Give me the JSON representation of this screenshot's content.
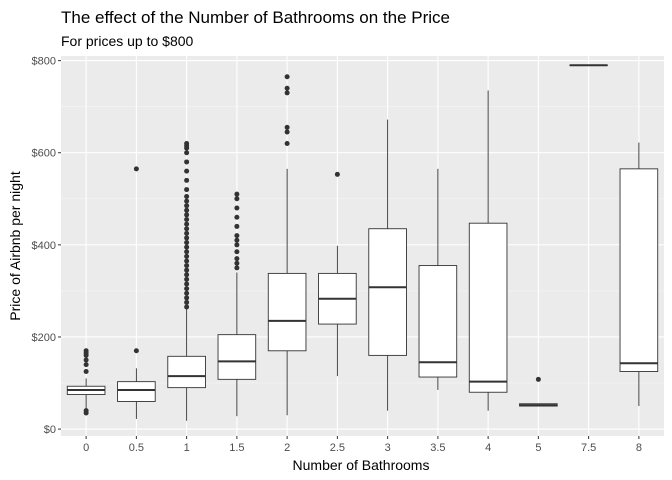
{
  "chart_data": {
    "type": "box",
    "title": "The effect of the Number of Bathrooms on the Price",
    "subtitle": "For prices up to $800",
    "xlabel": "Number of Bathrooms",
    "ylabel": "Price of Airbnb per night",
    "ylim": [
      -15,
      810
    ],
    "y_ticks": [
      0,
      200,
      400,
      600,
      800
    ],
    "y_tick_labels": [
      "$0",
      "$200",
      "$400",
      "$600",
      "$800"
    ],
    "grid": true,
    "panel_color": "#ebebeb",
    "categories": [
      "0",
      "0.5",
      "1",
      "1.5",
      "2",
      "2.5",
      "3",
      "3.5",
      "4",
      "5",
      "7.5",
      "8"
    ],
    "boxes": [
      {
        "category": "0",
        "min": 35,
        "q1": 75,
        "median": 85,
        "q3": 93,
        "max": 110,
        "outliers": [
          35,
          40,
          125,
          140,
          150,
          160,
          165,
          170
        ]
      },
      {
        "category": "0.5",
        "min": 22,
        "q1": 60,
        "median": 85,
        "q3": 103,
        "max": 132,
        "outliers": [
          170,
          565
        ]
      },
      {
        "category": "1",
        "min": 18,
        "q1": 90,
        "median": 115,
        "q3": 158,
        "max": 260,
        "outliers": [
          265,
          275,
          285,
          295,
          305,
          315,
          325,
          335,
          345,
          355,
          365,
          375,
          385,
          395,
          405,
          415,
          425,
          435,
          445,
          455,
          465,
          475,
          485,
          495,
          505,
          520,
          540,
          560,
          580,
          600,
          610,
          615,
          620
        ]
      },
      {
        "category": "1.5",
        "min": 28,
        "q1": 108,
        "median": 147,
        "q3": 205,
        "max": 340,
        "outliers": [
          350,
          360,
          370,
          385,
          400,
          410,
          420,
          440,
          460,
          480,
          500,
          510
        ]
      },
      {
        "category": "2",
        "min": 30,
        "q1": 170,
        "median": 235,
        "q3": 338,
        "max": 565,
        "outliers": [
          620,
          645,
          655,
          730,
          740,
          765
        ]
      },
      {
        "category": "2.5",
        "min": 115,
        "q1": 228,
        "median": 283,
        "q3": 338,
        "max": 398,
        "outliers": [
          553
        ]
      },
      {
        "category": "3",
        "min": 40,
        "q1": 160,
        "median": 308,
        "q3": 435,
        "max": 672,
        "outliers": []
      },
      {
        "category": "3.5",
        "min": 85,
        "q1": 113,
        "median": 145,
        "q3": 355,
        "max": 565,
        "outliers": []
      },
      {
        "category": "4",
        "min": 40,
        "q1": 80,
        "median": 103,
        "q3": 447,
        "max": 735,
        "outliers": []
      },
      {
        "category": "5",
        "min": 50,
        "q1": 50,
        "median": 52,
        "q3": 55,
        "max": 55,
        "outliers": [
          108
        ]
      },
      {
        "category": "7.5",
        "min": 790,
        "q1": 790,
        "median": 790,
        "q3": 790,
        "max": 790,
        "outliers": []
      },
      {
        "category": "8",
        "min": 50,
        "q1": 125,
        "median": 143,
        "q3": 565,
        "max": 622,
        "outliers": []
      }
    ]
  }
}
